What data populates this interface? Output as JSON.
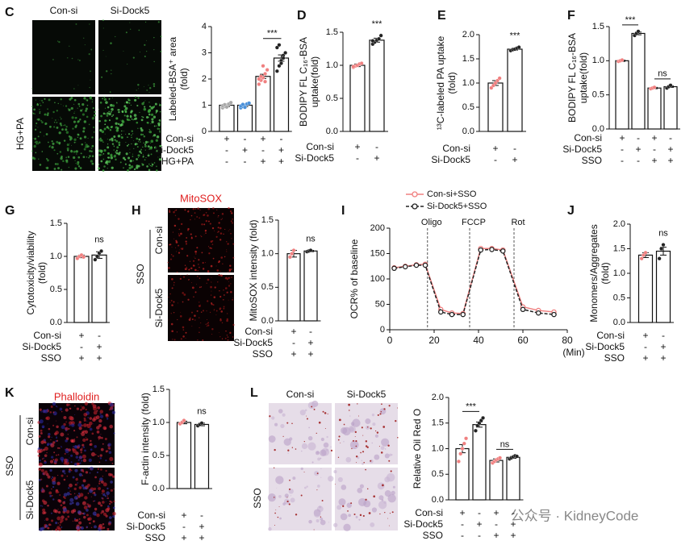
{
  "panel_letters": [
    "C",
    "D",
    "E",
    "F",
    "G",
    "H",
    "I",
    "J",
    "K",
    "L"
  ],
  "image_panels": {
    "C": {
      "columns": [
        "Con-si",
        "Si-Dock5"
      ],
      "rows": [
        "HG+PA"
      ]
    },
    "H": {
      "title": "MitoSOX",
      "group": "SSO",
      "rows": [
        "Con-si",
        "Si-Dock5"
      ]
    },
    "K": {
      "title": "Phalloidin",
      "group": "SSO",
      "rows": [
        "Con-si",
        "Si-Dock5"
      ]
    },
    "L": {
      "columns": [
        "Con-si",
        "Si-Dock5"
      ],
      "rows": [
        "SSO"
      ]
    }
  },
  "chart_data": [
    {
      "type": "bar",
      "ylabel": [
        "Labeled-BSA⁺ area",
        "(fold)"
      ],
      "ylim": [
        0,
        4
      ],
      "yticks": [
        0,
        1,
        2,
        3,
        4
      ],
      "values": [
        1.0,
        1.0,
        2.1,
        2.8
      ],
      "errors": [
        0.05,
        0.05,
        0.08,
        0.12
      ],
      "points": [
        [
          0.9,
          0.95,
          1.0,
          1.05,
          1.1,
          0.98,
          1.02,
          0.93
        ],
        [
          0.9,
          0.95,
          1.0,
          1.05,
          1.08,
          0.97,
          1.03,
          0.92
        ],
        [
          1.8,
          1.95,
          2.05,
          2.2,
          2.35,
          2.0,
          2.1,
          2.5,
          1.9
        ],
        [
          2.3,
          2.5,
          2.7,
          2.9,
          3.0,
          3.2,
          3.3,
          2.6,
          2.8
        ]
      ],
      "point_colors": [
        "#a8a8a8",
        "#4a90d9",
        "#f08080",
        "#222222"
      ],
      "conditions": [
        {
          "label": "Con-si",
          "signs": [
            "+",
            "-",
            "+",
            "-"
          ]
        },
        {
          "label": "Si-Dock5",
          "signs": [
            "-",
            "+",
            "-",
            "+"
          ]
        },
        {
          "label": "HG+PA",
          "signs": [
            "-",
            "-",
            "+",
            "+"
          ]
        }
      ],
      "comparisons": [
        {
          "text": "***",
          "bars": [
            2,
            3
          ]
        }
      ]
    },
    {
      "type": "bar",
      "ylabel": [
        "BODIPY FL C₁₆-BSA",
        "uptake(fold)"
      ],
      "ylim": [
        0,
        1.5
      ],
      "yticks": [
        {
          "value": 0,
          "label": "0.0"
        },
        0.5,
        {
          "value": 1,
          "label": "1.0"
        },
        1.5
      ],
      "values": [
        1.0,
        1.38
      ],
      "errors": [
        0.02,
        0.03
      ],
      "points": [
        [
          0.97,
          0.99,
          1.0,
          1.02,
          1.03,
          0.98
        ],
        [
          1.32,
          1.35,
          1.38,
          1.4,
          1.45,
          1.37
        ]
      ],
      "point_colors": [
        "#f08080",
        "#222222"
      ],
      "conditions": [
        {
          "label": "Con-si",
          "signs": [
            "+",
            "-"
          ]
        },
        {
          "label": "Si-Dock5",
          "signs": [
            "-",
            "+"
          ]
        }
      ],
      "comparisons": [
        {
          "text": "***",
          "bars": [
            1,
            1
          ]
        }
      ]
    },
    {
      "type": "bar",
      "ylabel": [
        "¹³C-labeled PA uptake",
        "(fold)"
      ],
      "ylim": [
        0,
        2
      ],
      "yticks": [
        {
          "value": 0,
          "label": "0.0"
        },
        0.5,
        {
          "value": 1,
          "label": "1.0"
        },
        1.5,
        {
          "value": 2,
          "label": "2.0"
        }
      ],
      "values": [
        1.0,
        1.7
      ],
      "errors": [
        0.05,
        0.02
      ],
      "points": [
        [
          0.9,
          0.95,
          1.0,
          1.05,
          1.1
        ],
        [
          1.67,
          1.69,
          1.7,
          1.72,
          1.74
        ]
      ],
      "point_colors": [
        "#f08080",
        "#222222"
      ],
      "conditions": [
        {
          "label": "Con-si",
          "signs": [
            "+",
            "-"
          ]
        },
        {
          "label": "Si-Dock5",
          "signs": [
            "-",
            "+"
          ]
        }
      ],
      "comparisons": [
        {
          "text": "***",
          "bars": [
            1,
            1
          ]
        }
      ]
    },
    {
      "type": "bar",
      "ylabel": [
        "BODIPY FL C₁₆-BSA",
        "uptake(fold)"
      ],
      "ylim": [
        0,
        1.5
      ],
      "yticks": [
        {
          "value": 0,
          "label": "0.0"
        },
        0.5,
        {
          "value": 1,
          "label": "1.0"
        },
        1.5
      ],
      "values": [
        1.0,
        1.4,
        0.6,
        0.62
      ],
      "errors": [
        0.01,
        0.02,
        0.01,
        0.01
      ],
      "points": [
        [
          0.99,
          1.0,
          1.01
        ],
        [
          1.37,
          1.4,
          1.43
        ],
        [
          0.59,
          0.6,
          0.61
        ],
        [
          0.6,
          0.62,
          0.64
        ]
      ],
      "point_colors": [
        "#f08080",
        "#222222",
        "#f08080",
        "#222222"
      ],
      "conditions": [
        {
          "label": "Con-si",
          "signs": [
            "+",
            "-",
            "+",
            "-"
          ]
        },
        {
          "label": "Si-Dock5",
          "signs": [
            "-",
            "+",
            "-",
            "+"
          ]
        },
        {
          "label": "SSO",
          "signs": [
            "-",
            "-",
            "+",
            "+"
          ]
        }
      ],
      "comparisons": [
        {
          "text": "***",
          "bars": [
            0,
            1
          ]
        },
        {
          "text": "ns",
          "bars": [
            2,
            3
          ]
        }
      ]
    },
    {
      "type": "bar",
      "ylabel": [
        "Cytotoxicity/viability",
        "(fold)"
      ],
      "ylim": [
        0,
        1.5
      ],
      "yticks": [
        {
          "value": 0,
          "label": "0.0"
        },
        0.5,
        {
          "value": 1,
          "label": "1.0"
        },
        1.5
      ],
      "values": [
        1.0,
        1.02
      ],
      "errors": [
        0.02,
        0.05
      ],
      "points": [
        [
          0.97,
          1.0,
          1.02,
          0.99
        ],
        [
          0.95,
          1.0,
          1.05,
          1.08
        ]
      ],
      "point_colors": [
        "#f08080",
        "#222222"
      ],
      "conditions": [
        {
          "label": "Con-si",
          "signs": [
            "+",
            "-"
          ]
        },
        {
          "label": "Si-Dock5",
          "signs": [
            "-",
            "+"
          ]
        },
        {
          "label": "SSO",
          "signs": [
            "+",
            "+"
          ]
        }
      ],
      "comparisons": [
        {
          "text": "ns",
          "bars": [
            1,
            1
          ]
        }
      ]
    },
    {
      "type": "bar",
      "ylabel": [
        "MitoSOX intensity (fold)"
      ],
      "ylim": [
        0,
        1.5
      ],
      "yticks": [
        {
          "value": 0,
          "label": "0.0"
        },
        0.5,
        {
          "value": 1,
          "label": "1.0"
        },
        1.5
      ],
      "values": [
        1.0,
        1.04
      ],
      "errors": [
        0.05,
        0.01
      ],
      "points": [
        [
          0.95,
          1.0,
          1.05
        ],
        [
          1.03,
          1.04,
          1.05
        ]
      ],
      "point_colors": [
        "#f08080",
        "#222222"
      ],
      "conditions": [
        {
          "label": "Con-si",
          "signs": [
            "+",
            "-"
          ]
        },
        {
          "label": "Si-Dock5",
          "signs": [
            "-",
            "+"
          ]
        },
        {
          "label": "SSO",
          "signs": [
            "+",
            "+"
          ]
        }
      ],
      "comparisons": [
        {
          "text": "ns",
          "bars": [
            1,
            1
          ]
        }
      ]
    },
    {
      "type": "line",
      "ylabel": [
        "OCR% of baseline"
      ],
      "xlabel": "(Min)",
      "xlim": [
        0,
        80
      ],
      "xticks": [
        0,
        20,
        40,
        60,
        80
      ],
      "ylim": [
        0,
        200
      ],
      "yticks": [
        0,
        50,
        100,
        150,
        200
      ],
      "x": [
        2,
        7,
        12,
        16,
        23,
        28,
        33,
        41,
        46,
        51,
        60,
        67,
        74
      ],
      "series": [
        {
          "name": "Con-si+SSO",
          "color": "#f08080",
          "dash": false,
          "values": [
            122,
            125,
            128,
            129,
            40,
            33,
            32,
            160,
            160,
            157,
            45,
            38,
            35
          ]
        },
        {
          "name": "Si-Dock5+SSO",
          "color": "#222222",
          "dash": true,
          "values": [
            121,
            124,
            127,
            127,
            35,
            30,
            30,
            157,
            158,
            155,
            40,
            33,
            30
          ]
        }
      ],
      "annotations": [
        {
          "text": "Oligo",
          "x": 17
        },
        {
          "text": "FCCP",
          "x": 36
        },
        {
          "text": "Rot",
          "x": 56
        }
      ]
    },
    {
      "type": "bar",
      "ylabel": [
        "Monomers/Aggregates",
        "(fold)"
      ],
      "ylim": [
        0,
        2
      ],
      "yticks": [
        {
          "value": 0,
          "label": "0.0"
        },
        0.5,
        {
          "value": 1,
          "label": "1.0"
        },
        1.5,
        {
          "value": 2,
          "label": "2.0"
        }
      ],
      "values": [
        1.37,
        1.45
      ],
      "errors": [
        0.05,
        0.08
      ],
      "points": [
        [
          1.3,
          1.37,
          1.42
        ],
        [
          1.3,
          1.5,
          1.58
        ]
      ],
      "point_colors": [
        "#f08080",
        "#222222"
      ],
      "conditions": [
        {
          "label": "Con-si",
          "signs": [
            "+",
            "-"
          ]
        },
        {
          "label": "Si-Dock5",
          "signs": [
            "-",
            "+"
          ]
        },
        {
          "label": "SSO",
          "signs": [
            "+",
            "+"
          ]
        }
      ],
      "comparisons": [
        {
          "text": "ns",
          "bars": [
            1,
            1
          ]
        }
      ]
    },
    {
      "type": "bar",
      "ylabel": [
        "F-actin intensity (fold)"
      ],
      "ylim": [
        0,
        1.5
      ],
      "yticks": [
        {
          "value": 0,
          "label": "0.0"
        },
        0.5,
        {
          "value": 1,
          "label": "1.0"
        },
        1.5
      ],
      "values": [
        1.0,
        0.97
      ],
      "errors": [
        0.02,
        0.02
      ],
      "points": [
        [
          0.98,
          1.0,
          1.03
        ],
        [
          0.95,
          0.97,
          0.99
        ]
      ],
      "point_colors": [
        "#f08080",
        "#222222"
      ],
      "conditions": [
        {
          "label": "Con-si",
          "signs": [
            "+",
            "-"
          ]
        },
        {
          "label": "Si-Dock5",
          "signs": [
            "-",
            "+"
          ]
        },
        {
          "label": "SSO",
          "signs": [
            "+",
            "+"
          ]
        }
      ],
      "comparisons": [
        {
          "text": "ns",
          "bars": [
            1,
            1
          ]
        }
      ]
    },
    {
      "type": "bar",
      "ylabel": [
        "Relative Oil Red O"
      ],
      "ylim": [
        0,
        2
      ],
      "yticks": [
        {
          "value": 0,
          "label": "0.0"
        },
        0.5,
        {
          "value": 1,
          "label": "1.0"
        },
        1.5,
        {
          "value": 2,
          "label": "2.0"
        }
      ],
      "values": [
        1.0,
        1.47,
        0.77,
        0.83
      ],
      "errors": [
        0.08,
        0.05,
        0.03,
        0.02
      ],
      "points": [
        [
          0.75,
          0.9,
          1.0,
          1.1,
          1.2
        ],
        [
          1.35,
          1.45,
          1.5,
          1.55,
          1.6
        ],
        [
          0.72,
          0.75,
          0.78,
          0.8,
          0.82
        ],
        [
          0.8,
          0.82,
          0.84,
          0.86,
          0.85
        ]
      ],
      "point_colors": [
        "#f08080",
        "#222222",
        "#f08080",
        "#222222"
      ],
      "conditions": [
        {
          "label": "Con-si",
          "signs": [
            "+",
            "-",
            "+",
            "-"
          ]
        },
        {
          "label": "Si-Dock5",
          "signs": [
            "-",
            "+",
            "-",
            "+"
          ]
        },
        {
          "label": "SSO",
          "signs": [
            "-",
            "-",
            "+",
            "+"
          ]
        }
      ],
      "comparisons": [
        {
          "text": "***",
          "bars": [
            0,
            1
          ]
        },
        {
          "text": "ns",
          "bars": [
            2,
            3
          ]
        }
      ]
    }
  ],
  "watermark": "公众号 · KidneyCode"
}
